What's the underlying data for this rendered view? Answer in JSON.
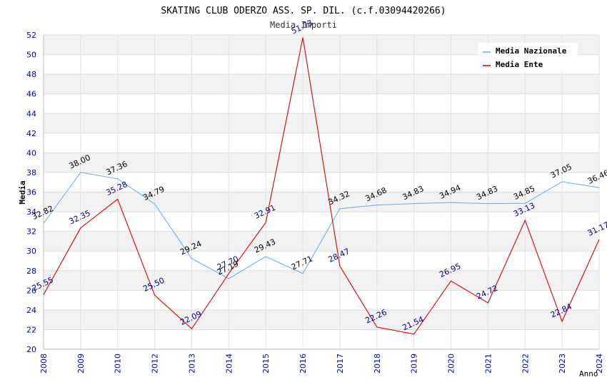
{
  "chart_data": {
    "type": "line",
    "title": "SKATING CLUB ODERZO ASS. SP. DIL. (c.f.03094420266)",
    "subtitle": "Media Importi",
    "xlabel": "Anno",
    "ylabel": "Media",
    "categories": [
      "2008",
      "2009",
      "2010",
      "2012",
      "2013",
      "2014",
      "2015",
      "2016",
      "2017",
      "2018",
      "2019",
      "2020",
      "2021",
      "2022",
      "2023",
      "2024"
    ],
    "ylim": [
      20,
      52
    ],
    "yticks": [
      20,
      22,
      24,
      26,
      28,
      30,
      32,
      34,
      36,
      38,
      40,
      42,
      44,
      46,
      48,
      50,
      52
    ],
    "grid": true,
    "legend_position": "top-right",
    "series": [
      {
        "name": "Media Nazionale",
        "color": "#66aaee",
        "label_color": "#000000",
        "values": [
          32.82,
          38.0,
          37.36,
          34.79,
          29.24,
          27.19,
          29.43,
          27.71,
          34.32,
          34.68,
          34.83,
          34.94,
          34.83,
          34.85,
          37.05,
          36.46
        ],
        "labels": [
          "32.82",
          "38.00",
          "37.36",
          "34.79",
          "29.24",
          "27.19",
          "29.43",
          "27.71",
          "34.32",
          "34.68",
          "34.83",
          "34.94",
          "34.83",
          "34.85",
          "37.05",
          "36.46"
        ]
      },
      {
        "name": "Media Ente",
        "color": "#dd0000",
        "label_color": "#000080",
        "values": [
          25.55,
          32.35,
          35.28,
          25.5,
          22.09,
          27.7,
          32.91,
          51.73,
          28.47,
          22.26,
          21.54,
          26.95,
          24.72,
          33.13,
          22.84,
          31.17
        ],
        "labels": [
          "25.55",
          "32.35",
          "35.28",
          "25.50",
          "22.09",
          "27.70",
          "32.91",
          "51.73",
          "28.47",
          "22.26",
          "21.54",
          "26.95",
          "24.72",
          "33.13",
          "22.84",
          "31.17"
        ]
      }
    ]
  }
}
